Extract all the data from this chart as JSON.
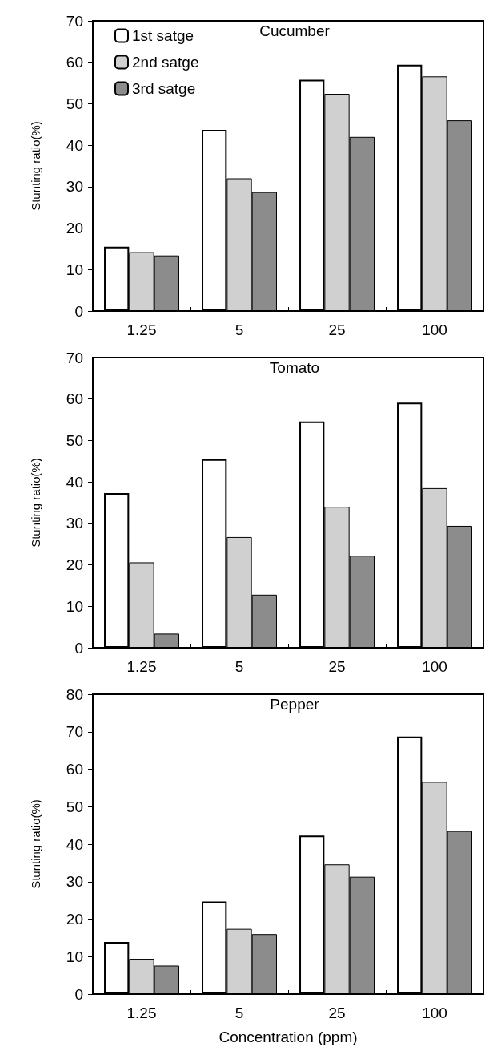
{
  "chart_data": [
    {
      "type": "bar",
      "title": "Cucumber",
      "ylabel": "Stunting ratio(%)",
      "categories": [
        "1.25",
        "5",
        "25",
        "100"
      ],
      "ylim": [
        0,
        70
      ],
      "yticks": [
        0,
        10,
        20,
        30,
        40,
        50,
        60,
        70
      ],
      "grid": false,
      "legend": "top left",
      "series": [
        {
          "name": "1st satge",
          "color": "#ffffff",
          "values": [
            15.5,
            43.7,
            55.8,
            59.4
          ]
        },
        {
          "name": "2nd satge",
          "color": "#d0d0d0",
          "values": [
            14.2,
            32,
            52.4,
            56.6
          ]
        },
        {
          "name": "3rd satge",
          "color": "#8c8c8c",
          "values": [
            13.4,
            28.7,
            42,
            46
          ]
        }
      ]
    },
    {
      "type": "bar",
      "title": "Tomato",
      "ylabel": "Stunting ratio(%)",
      "categories": [
        "1.25",
        "5",
        "25",
        "100"
      ],
      "ylim": [
        0,
        70
      ],
      "yticks": [
        0,
        10,
        20,
        30,
        40,
        50,
        60,
        70
      ],
      "grid": false,
      "series": [
        {
          "color": "#ffffff",
          "values": [
            37.3,
            45.5,
            54.6,
            59.1
          ]
        },
        {
          "color": "#d0d0d0",
          "values": [
            20.6,
            26.7,
            34,
            38.5
          ]
        },
        {
          "color": "#8c8c8c",
          "values": [
            3.4,
            12.8,
            22.2,
            29.4
          ]
        }
      ]
    },
    {
      "type": "bar",
      "title": "Pepper",
      "ylabel": "Stunting ratio(%)",
      "xlabel": "Concentration (ppm)",
      "categories": [
        "1.25",
        "5",
        "25",
        "100"
      ],
      "ylim": [
        0,
        80
      ],
      "yticks": [
        0,
        10,
        20,
        30,
        40,
        50,
        60,
        70,
        80
      ],
      "grid": false,
      "series": [
        {
          "color": "#ffffff",
          "values": [
            13.9,
            24.7,
            42.3,
            68.7
          ]
        },
        {
          "color": "#d0d0d0",
          "values": [
            9.4,
            17.4,
            34.6,
            56.6
          ]
        },
        {
          "color": "#8c8c8c",
          "values": [
            7.6,
            16,
            31.3,
            43.5
          ]
        }
      ]
    }
  ]
}
